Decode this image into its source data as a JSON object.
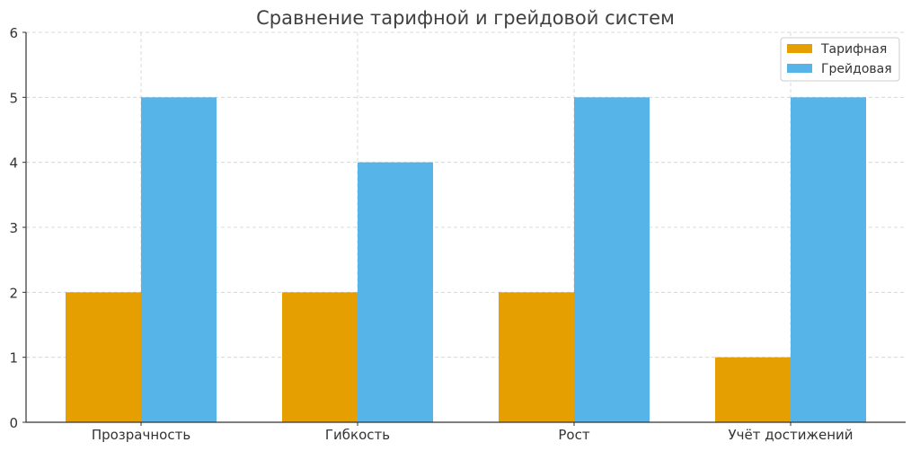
{
  "chart_data": {
    "type": "bar",
    "title": "Сравнение тарифной и грейдовой систем",
    "xlabel": "",
    "ylabel": "",
    "categories": [
      "Прозрачность",
      "Гибкость",
      "Рост",
      "Учёт достижений"
    ],
    "series": [
      {
        "name": "Тарифная",
        "values": [
          2,
          2,
          2,
          1
        ],
        "color": "#E69F00"
      },
      {
        "name": "Грейдовая",
        "values": [
          5,
          4,
          5,
          5
        ],
        "color": "#56B4E9"
      }
    ],
    "ylim": [
      0,
      6
    ],
    "yticks": [
      "0",
      "1",
      "2",
      "3",
      "4",
      "5",
      "6"
    ],
    "grid": true,
    "legend_position": "top-right"
  }
}
